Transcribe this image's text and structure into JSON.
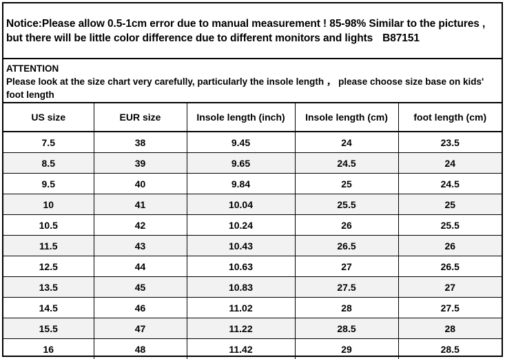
{
  "notice": {
    "text": "Notice:Please allow 0.5-1cm error due to manual measurement ! 85-98% Similar to the pictures , but there will be little color difference due to different monitors and lights",
    "sku": "B87151"
  },
  "attention": {
    "title": "ATTENTION",
    "text": "Please look at the size chart very carefully, particularly the insole length ， please choose size base on kids' foot length"
  },
  "table": {
    "headers": [
      "US size",
      "EUR size",
      "Insole length (inch)",
      "Insole length (cm)",
      "foot length (cm)"
    ],
    "rows": [
      [
        "7.5",
        "38",
        "9.45",
        "24",
        "23.5"
      ],
      [
        "8.5",
        "39",
        "9.65",
        "24.5",
        "24"
      ],
      [
        "9.5",
        "40",
        "9.84",
        "25",
        "24.5"
      ],
      [
        "10",
        "41",
        "10.04",
        "25.5",
        "25"
      ],
      [
        "10.5",
        "42",
        "10.24",
        "26",
        "25.5"
      ],
      [
        "11.5",
        "43",
        "10.43",
        "26.5",
        "26"
      ],
      [
        "12.5",
        "44",
        "10.63",
        "27",
        "26.5"
      ],
      [
        "13.5",
        "45",
        "10.83",
        "27.5",
        "27"
      ],
      [
        "14.5",
        "46",
        "11.02",
        "28",
        "27.5"
      ],
      [
        "15.5",
        "47",
        "11.22",
        "28.5",
        "28"
      ],
      [
        "16",
        "48",
        "11.42",
        "29",
        "28.5"
      ]
    ]
  },
  "colors": {
    "border": "#000000",
    "background": "#ffffff",
    "stripe": "#f2f2f2"
  }
}
